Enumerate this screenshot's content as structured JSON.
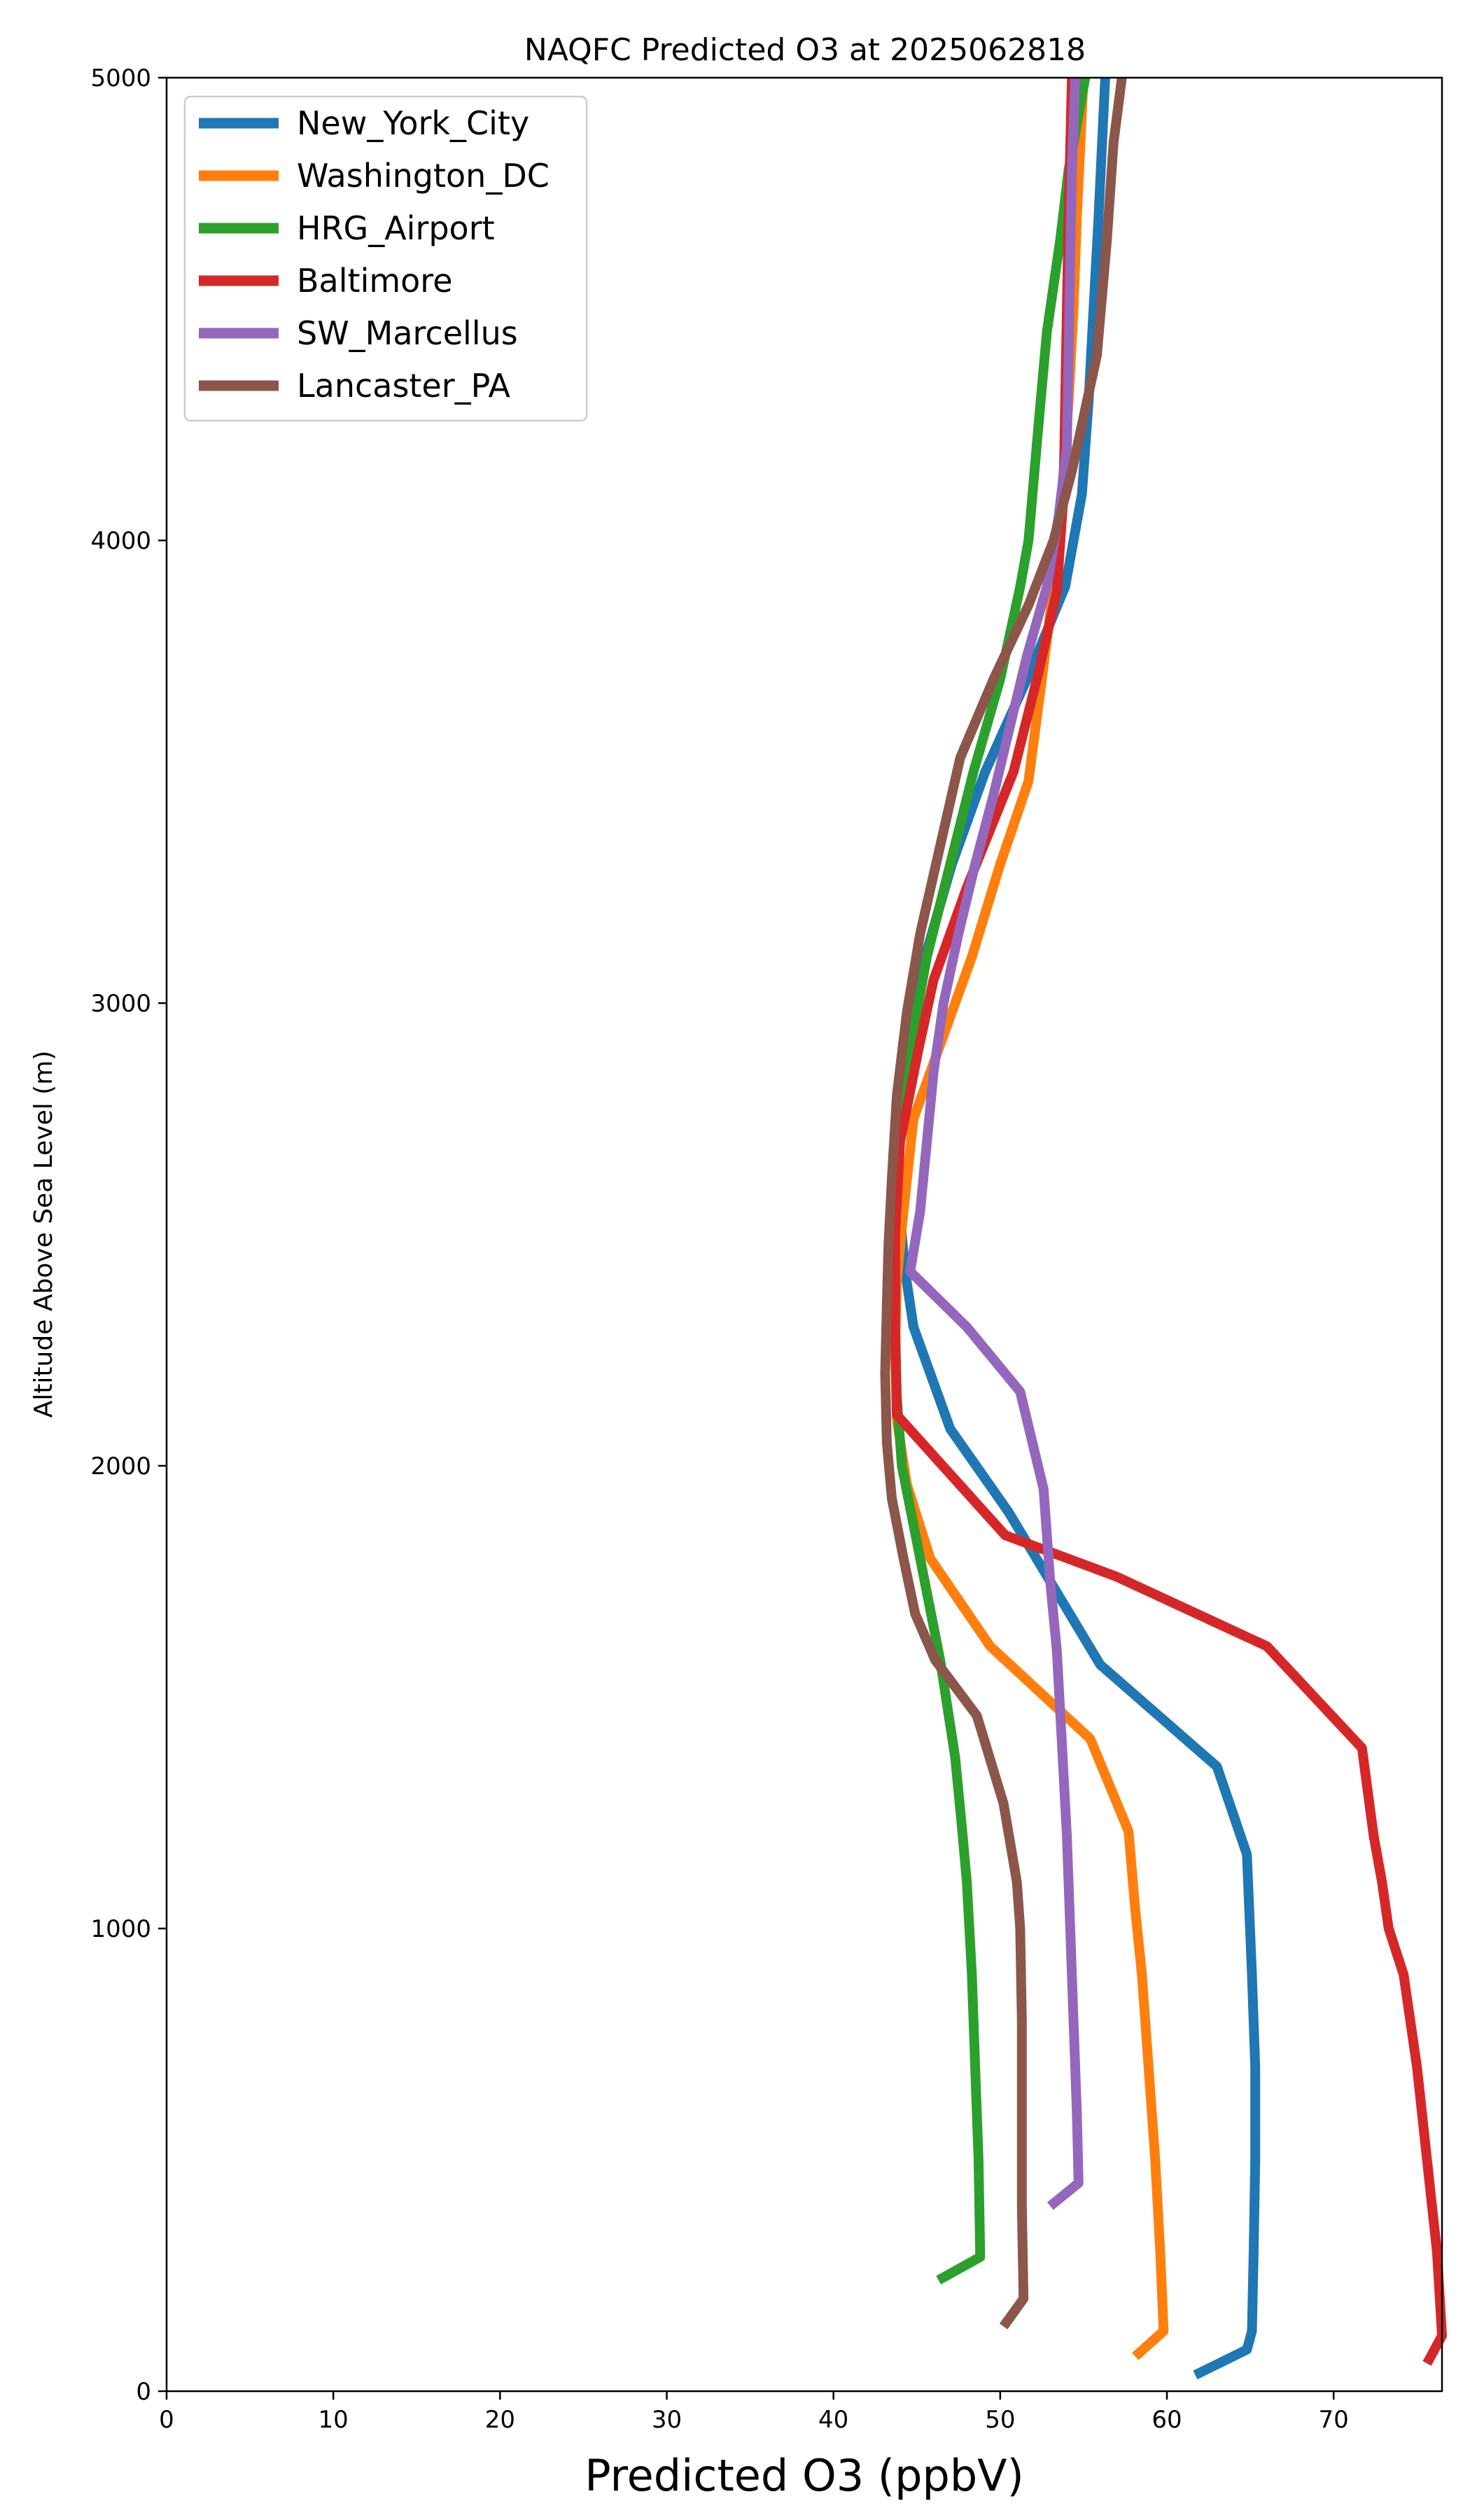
{
  "chart_data": {
    "type": "line",
    "title": "NAQFC Predicted O3 at 2025062818",
    "xlabel": "Predicted O3 (ppbV)",
    "ylabel": "Altitude Above Sea Level (m)",
    "xlim": [
      0,
      76.5
    ],
    "ylim": [
      0,
      5000
    ],
    "xticks": [
      "0",
      "10",
      "20",
      "30",
      "40",
      "50",
      "60",
      "70"
    ],
    "yticks": [
      "0",
      "1000",
      "2000",
      "3000",
      "4000",
      "5000"
    ],
    "grid": false,
    "legend_position": "upper-left",
    "series": [
      {
        "name": "New_York_City",
        "color": "#1f77b4",
        "points": [
          [
            61.7,
            35
          ],
          [
            64.8,
            90
          ],
          [
            65.1,
            130
          ],
          [
            65.2,
            300
          ],
          [
            65.3,
            500
          ],
          [
            65.3,
            700
          ],
          [
            65.1,
            900
          ],
          [
            64.8,
            1160
          ],
          [
            63.0,
            1350
          ],
          [
            56.0,
            1570
          ],
          [
            50.5,
            1900
          ],
          [
            47.0,
            2080
          ],
          [
            44.8,
            2300
          ],
          [
            44.3,
            2420
          ],
          [
            44.0,
            2540
          ],
          [
            43.9,
            2650
          ],
          [
            44.1,
            2800
          ],
          [
            44.6,
            2950
          ],
          [
            45.5,
            3100
          ],
          [
            47.1,
            3300
          ],
          [
            49.1,
            3500
          ],
          [
            51.6,
            3700
          ],
          [
            53.9,
            3900
          ],
          [
            54.9,
            4100
          ],
          [
            55.3,
            4300
          ],
          [
            55.6,
            4500
          ],
          [
            55.9,
            4700
          ],
          [
            56.1,
            4850
          ],
          [
            56.3,
            5000
          ]
        ]
      },
      {
        "name": "Washington_DC",
        "color": "#ff7f0e",
        "points": [
          [
            58.1,
            75
          ],
          [
            59.8,
            130
          ],
          [
            59.6,
            300
          ],
          [
            59.3,
            500
          ],
          [
            58.9,
            700
          ],
          [
            58.5,
            900
          ],
          [
            58.1,
            1040
          ],
          [
            57.7,
            1210
          ],
          [
            55.4,
            1410
          ],
          [
            49.4,
            1610
          ],
          [
            45.8,
            1800
          ],
          [
            44.4,
            1960
          ],
          [
            43.8,
            2100
          ],
          [
            43.7,
            2250
          ],
          [
            43.8,
            2400
          ],
          [
            44.2,
            2550
          ],
          [
            44.8,
            2750
          ],
          [
            46.3,
            2900
          ],
          [
            48.3,
            3100
          ],
          [
            50.0,
            3300
          ],
          [
            51.7,
            3480
          ],
          [
            52.5,
            3700
          ],
          [
            53.2,
            3900
          ],
          [
            53.7,
            4100
          ],
          [
            54.1,
            4300
          ],
          [
            54.4,
            4500
          ],
          [
            54.6,
            4700
          ],
          [
            54.8,
            4850
          ],
          [
            55.0,
            5000
          ]
        ]
      },
      {
        "name": "HRG_Airport",
        "color": "#2ca02c",
        "points": [
          [
            46.3,
            240
          ],
          [
            48.8,
            290
          ],
          [
            48.7,
            500
          ],
          [
            48.5,
            700
          ],
          [
            48.3,
            900
          ],
          [
            48.0,
            1100
          ],
          [
            47.7,
            1220
          ],
          [
            47.3,
            1370
          ],
          [
            46.4,
            1580
          ],
          [
            45.2,
            1800
          ],
          [
            44.1,
            2000
          ],
          [
            43.8,
            2150
          ],
          [
            43.7,
            2300
          ],
          [
            43.7,
            2500
          ],
          [
            43.9,
            2700
          ],
          [
            44.6,
            2900
          ],
          [
            45.6,
            3100
          ],
          [
            47.0,
            3300
          ],
          [
            48.4,
            3500
          ],
          [
            50.0,
            3700
          ],
          [
            51.2,
            3900
          ],
          [
            51.7,
            4000
          ],
          [
            52.3,
            4250
          ],
          [
            52.8,
            4450
          ],
          [
            53.6,
            4650
          ],
          [
            54.1,
            4800
          ],
          [
            54.6,
            4900
          ],
          [
            55.1,
            5000
          ]
        ]
      },
      {
        "name": "Baltimore",
        "color": "#d62728",
        "points": [
          [
            75.6,
            60
          ],
          [
            76.5,
            120
          ],
          [
            76.2,
            300
          ],
          [
            75.6,
            500
          ],
          [
            75.0,
            700
          ],
          [
            74.2,
            900
          ],
          [
            73.3,
            1000
          ],
          [
            72.9,
            1100
          ],
          [
            72.4,
            1200
          ],
          [
            71.7,
            1390
          ],
          [
            66.0,
            1610
          ],
          [
            57.0,
            1760
          ],
          [
            50.3,
            1850
          ],
          [
            46.8,
            1990
          ],
          [
            43.8,
            2110
          ],
          [
            43.7,
            2300
          ],
          [
            43.7,
            2500
          ],
          [
            44.0,
            2700
          ],
          [
            45.1,
            2900
          ],
          [
            46.0,
            3050
          ],
          [
            48.0,
            3250
          ],
          [
            50.8,
            3500
          ],
          [
            52.2,
            3700
          ],
          [
            53.4,
            3890
          ],
          [
            53.8,
            4100
          ],
          [
            53.9,
            4300
          ],
          [
            54.0,
            4500
          ],
          [
            54.1,
            4700
          ],
          [
            54.2,
            4850
          ],
          [
            54.3,
            5000
          ]
        ]
      },
      {
        "name": "SW_Marcellus",
        "color": "#9467bd",
        "points": [
          [
            53.0,
            400
          ],
          [
            54.7,
            450
          ],
          [
            54.6,
            600
          ],
          [
            54.4,
            800
          ],
          [
            54.2,
            1000
          ],
          [
            54.0,
            1200
          ],
          [
            53.7,
            1400
          ],
          [
            53.4,
            1600
          ],
          [
            53.0,
            1750
          ],
          [
            52.6,
            1950
          ],
          [
            51.2,
            2160
          ],
          [
            48.0,
            2300
          ],
          [
            44.6,
            2420
          ],
          [
            45.2,
            2550
          ],
          [
            45.6,
            2700
          ],
          [
            46.0,
            2850
          ],
          [
            46.6,
            3000
          ],
          [
            47.5,
            3150
          ],
          [
            48.5,
            3300
          ],
          [
            49.6,
            3450
          ],
          [
            50.6,
            3600
          ],
          [
            51.6,
            3750
          ],
          [
            52.8,
            3900
          ],
          [
            53.5,
            4050
          ],
          [
            54.0,
            4200
          ],
          [
            54.1,
            4400
          ],
          [
            54.2,
            4600
          ],
          [
            54.3,
            4800
          ],
          [
            54.5,
            5000
          ]
        ]
      },
      {
        "name": "Lancaster_PA",
        "color": "#8c564b",
        "points": [
          [
            50.2,
            140
          ],
          [
            51.4,
            200
          ],
          [
            51.3,
            400
          ],
          [
            51.3,
            600
          ],
          [
            51.3,
            800
          ],
          [
            51.2,
            1000
          ],
          [
            51.0,
            1100
          ],
          [
            50.2,
            1270
          ],
          [
            48.6,
            1460
          ],
          [
            46.1,
            1580
          ],
          [
            44.9,
            1680
          ],
          [
            44.2,
            1800
          ],
          [
            43.5,
            1930
          ],
          [
            43.2,
            2050
          ],
          [
            43.1,
            2200
          ],
          [
            43.2,
            2350
          ],
          [
            43.3,
            2480
          ],
          [
            43.5,
            2620
          ],
          [
            43.8,
            2800
          ],
          [
            44.4,
            2980
          ],
          [
            45.2,
            3150
          ],
          [
            46.4,
            3340
          ],
          [
            47.6,
            3530
          ],
          [
            49.6,
            3700
          ],
          [
            51.7,
            3860
          ],
          [
            53.2,
            4000
          ],
          [
            54.3,
            4150
          ],
          [
            55.8,
            4400
          ],
          [
            56.4,
            4650
          ],
          [
            56.8,
            4860
          ],
          [
            57.3,
            5000
          ]
        ]
      }
    ]
  }
}
